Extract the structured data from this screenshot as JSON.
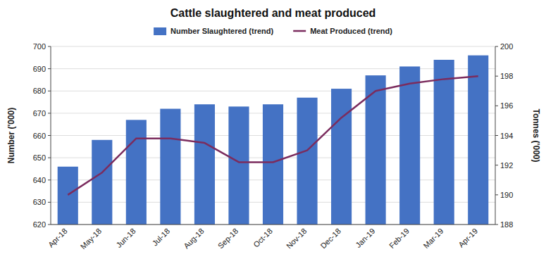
{
  "chart_data": {
    "type": "bar",
    "title": "Cattle slaughtered and meat produced",
    "categories": [
      "Apr-18",
      "May-18",
      "Jun-18",
      "Jul-18",
      "Aug-18",
      "Sep-18",
      "Oct-18",
      "Nov-18",
      "Dec-18",
      "Jan-19",
      "Feb-19",
      "Mar-19",
      "Apr-19"
    ],
    "series": [
      {
        "name": "Number Slaughtered (trend)",
        "type": "bar",
        "color": "#4472C4",
        "values": [
          646,
          658,
          667,
          672,
          674,
          673,
          674,
          677,
          681,
          687,
          691,
          694,
          696
        ]
      },
      {
        "name": "Meat Produced (trend)",
        "type": "line",
        "axis": "y2",
        "color": "#7B2C5E",
        "values": [
          190.0,
          191.5,
          193.8,
          193.8,
          193.5,
          192.2,
          192.2,
          193.0,
          195.2,
          197.0,
          197.5,
          197.8,
          198.0
        ]
      }
    ],
    "ylabel": "Number ('000)",
    "y2label": "Tonnes ('000)",
    "ylim": [
      620,
      700
    ],
    "yticks": [
      620,
      630,
      640,
      650,
      660,
      670,
      680,
      690,
      700
    ],
    "y2lim": [
      188,
      200
    ],
    "y2ticks": [
      188,
      190,
      192,
      194,
      196,
      198,
      200
    ],
    "grid": true,
    "legend": "top"
  }
}
